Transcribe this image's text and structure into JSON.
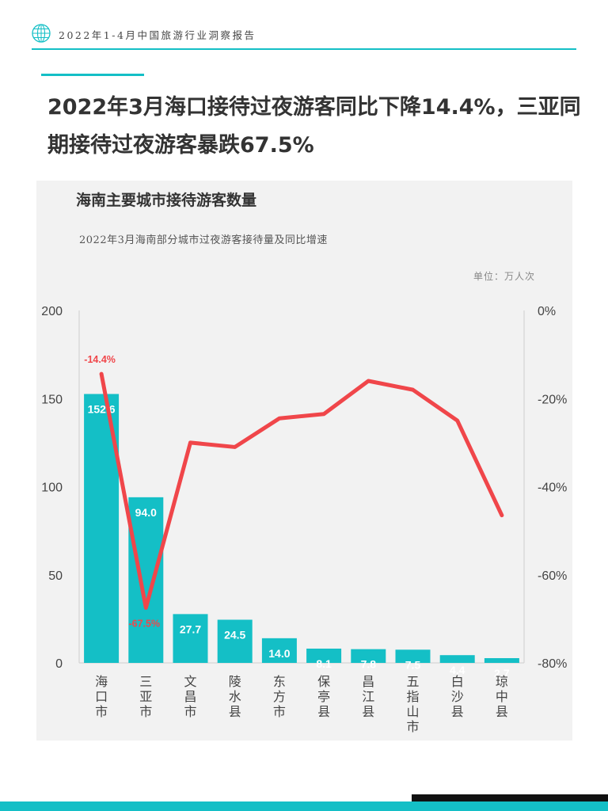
{
  "header": {
    "report_title": "2022年1-4月中国旅游行业洞察报告",
    "logo_icon": "globe-icon"
  },
  "headline": "2022年3月海口接待过夜游客同比下降14.4%，三亚同期接待过夜游客暴跌67.5%",
  "colors": {
    "accent": "#14bfc6",
    "bar": "#14bfc6",
    "line": "#f0464a",
    "panel": "#f2f2f2"
  },
  "chart_data": {
    "type": "bar",
    "title": "海南主要城市接待游客数量",
    "subtitle": "2022年3月海南部分城市过夜游客接待量及同比增速",
    "unit": "单位：万人次",
    "categories": [
      "海口市",
      "三亚市",
      "文昌市",
      "陵水县",
      "东方市",
      "保亭县",
      "昌江县",
      "五指山市",
      "白沙县",
      "琼中县"
    ],
    "y_ticks": [
      "0",
      "50",
      "100",
      "150",
      "200"
    ],
    "y2_ticks": [
      "-80%",
      "-60%",
      "-40%",
      "-20%",
      "0%"
    ],
    "ylim": [
      0,
      200
    ],
    "y2lim": [
      -80,
      0
    ],
    "grid": false,
    "series": [
      {
        "type": "bar",
        "values": [
          152.6,
          94.0,
          27.7,
          24.5,
          14.0,
          8.1,
          7.8,
          7.5,
          4.4,
          2.7
        ],
        "labels": [
          "152.6",
          "94.0",
          "27.7",
          "24.5",
          "14.0",
          "8.1",
          "7.8",
          "7.5",
          "4.4",
          "2.7"
        ]
      },
      {
        "type": "line",
        "axis": "right",
        "values": [
          -14.4,
          -67.5,
          -30.0,
          -31.0,
          -24.5,
          -23.5,
          -16.0,
          -18.0,
          -25.0,
          -46.5
        ],
        "labels": [
          "-14.4%",
          "-67.5%",
          "",
          "",
          "",
          "",
          "",
          "",
          "",
          ""
        ]
      }
    ]
  }
}
